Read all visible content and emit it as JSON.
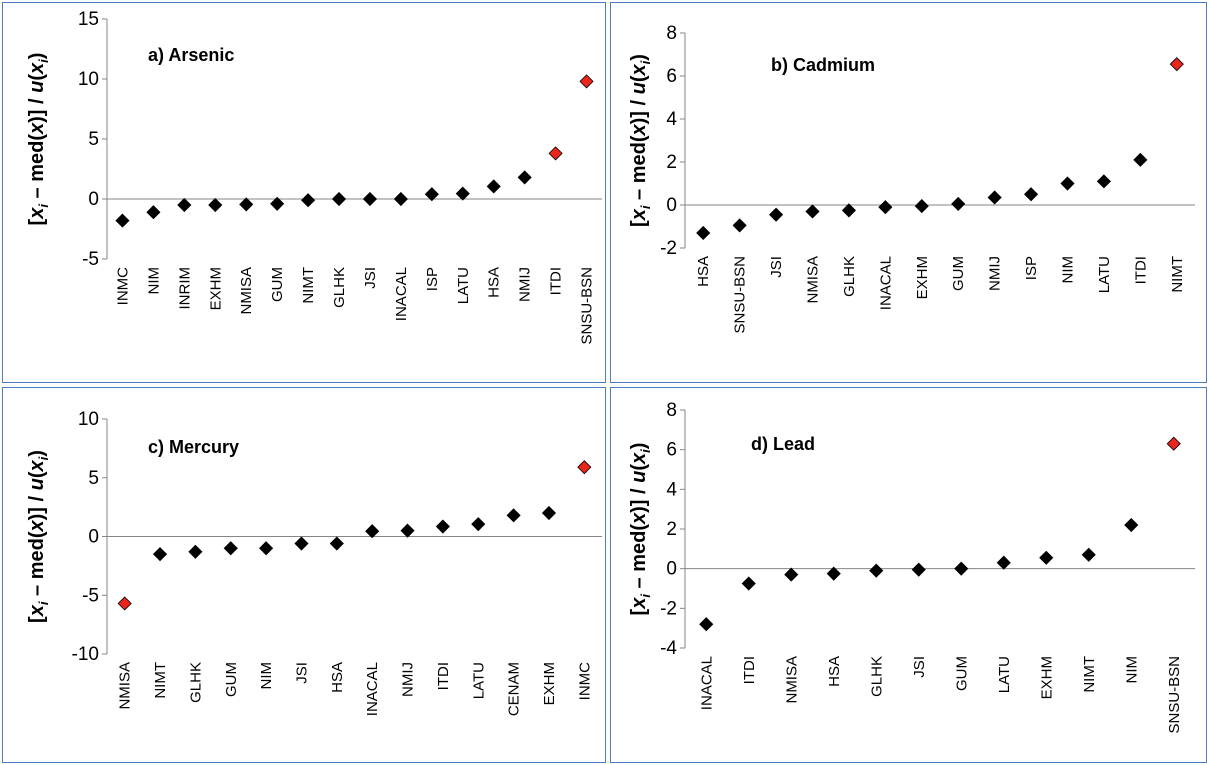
{
  "y_axis_label": {
    "prefix": "[",
    "x": "x",
    "i1": "i",
    "mid": " – med(",
    "x2": "x",
    "mid2": ")] / ",
    "u": "u",
    "open": "(",
    "x3": "x",
    "i2": "i",
    "close": ")"
  },
  "colors": {
    "normal": "#000000",
    "outlier": "#e8261b",
    "border": "#4a7ebb",
    "axis": "#868686"
  },
  "chart_data": [
    {
      "type": "scatter",
      "title": "a) Arsenic",
      "ylabel": "[xi – med(x)] / u(xi)",
      "ylim": [
        -5,
        15
      ],
      "yticks": [
        -5,
        0,
        5,
        10,
        15
      ],
      "categories": [
        "INMC",
        "NIM",
        "INRIM",
        "EXHM",
        "NMISA",
        "GUM",
        "NIMT",
        "GLHK",
        "JSI",
        "INACAL",
        "ISP",
        "LATU",
        "HSA",
        "NMIJ",
        "ITDI",
        "SNSU-BSN"
      ],
      "values": [
        -1.8,
        -1.1,
        -0.5,
        -0.5,
        -0.45,
        -0.4,
        -0.1,
        0.0,
        0.0,
        0.0,
        0.4,
        0.45,
        1.05,
        1.8,
        3.8,
        9.8
      ],
      "outliers": [
        false,
        false,
        false,
        false,
        false,
        false,
        false,
        false,
        false,
        false,
        false,
        false,
        false,
        false,
        true,
        true
      ]
    },
    {
      "type": "scatter",
      "title": "b) Cadmium",
      "ylabel": "[xi – med(x)] / u(xi)",
      "ylim": [
        -2,
        8
      ],
      "yticks": [
        -2,
        0,
        2,
        4,
        6,
        8
      ],
      "categories": [
        "HSA",
        "SNSU-BSN",
        "JSI",
        "NMISA",
        "GLHK",
        "INACAL",
        "EXHM",
        "GUM",
        "NMIJ",
        "ISP",
        "NIM",
        "LATU",
        "ITDI",
        "NIMT"
      ],
      "values": [
        -1.3,
        -0.95,
        -0.45,
        -0.3,
        -0.25,
        -0.1,
        -0.05,
        0.05,
        0.35,
        0.5,
        1.0,
        1.1,
        2.1,
        6.55
      ],
      "outliers": [
        false,
        false,
        false,
        false,
        false,
        false,
        false,
        false,
        false,
        false,
        false,
        false,
        false,
        true
      ]
    },
    {
      "type": "scatter",
      "title": "c) Mercury",
      "ylabel": "[xi – med(x)] / u(xi)",
      "ylim": [
        -10,
        10
      ],
      "yticks": [
        -10,
        -5,
        0,
        5,
        10
      ],
      "categories": [
        "NMISA",
        "NIMT",
        "GLHK",
        "GUM",
        "NIM",
        "JSI",
        "HSA",
        "INACAL",
        "NMIJ",
        "ITDI",
        "LATU",
        "CENAM",
        "EXHM",
        "INMC"
      ],
      "values": [
        -5.7,
        -1.5,
        -1.3,
        -1.0,
        -1.0,
        -0.6,
        -0.6,
        0.45,
        0.5,
        0.85,
        1.05,
        1.8,
        2.0,
        5.9
      ],
      "outliers": [
        true,
        false,
        false,
        false,
        false,
        false,
        false,
        false,
        false,
        false,
        false,
        false,
        false,
        true
      ]
    },
    {
      "type": "scatter",
      "title": "d) Lead",
      "ylabel": "[xi – med(x)] / u(xi)",
      "ylim": [
        -4,
        8
      ],
      "yticks": [
        -4,
        -2,
        0,
        2,
        4,
        6,
        8
      ],
      "categories": [
        "INACAL",
        "ITDI",
        "NMISA",
        "HSA",
        "GLHK",
        "JSI",
        "GUM",
        "LATU",
        "EXHM",
        "NIMT",
        "NIM",
        "SNSU-BSN"
      ],
      "values": [
        -2.8,
        -0.75,
        -0.3,
        -0.25,
        -0.1,
        -0.05,
        0.0,
        0.3,
        0.55,
        0.7,
        2.2,
        6.3
      ],
      "outliers": [
        false,
        false,
        false,
        false,
        false,
        false,
        false,
        false,
        false,
        false,
        false,
        true
      ]
    }
  ]
}
